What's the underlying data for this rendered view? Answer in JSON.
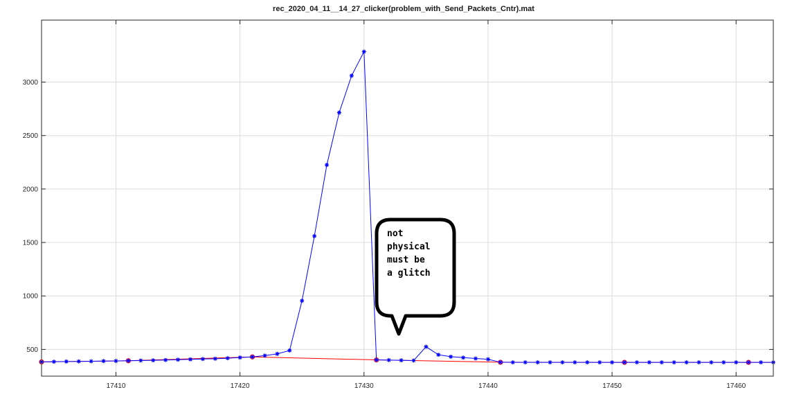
{
  "chart_data": {
    "type": "line",
    "title": "rec_2020_04_11__14_27_clicker(problem_with_Send_Packets_Cntr).mat",
    "xlabel": "",
    "ylabel": "",
    "xlim": [
      17404,
      17463
    ],
    "ylim": [
      250,
      3580
    ],
    "xticks": [
      17410,
      17420,
      17430,
      17440,
      17450,
      17460
    ],
    "yticks": [
      500,
      1000,
      1500,
      2000,
      2500,
      3000
    ],
    "grid": true,
    "series": [
      {
        "color": "#0000ff",
        "marker": "asterisk",
        "x": [
          17404,
          17405,
          17406,
          17407,
          17408,
          17409,
          17410,
          17411,
          17412,
          17413,
          17414,
          17415,
          17416,
          17417,
          17418,
          17419,
          17420,
          17421,
          17422,
          17423,
          17424,
          17425,
          17426,
          17427,
          17428,
          17429,
          17430,
          17431,
          17432,
          17433,
          17434,
          17435,
          17436,
          17437,
          17438,
          17439,
          17440,
          17441,
          17442,
          17443,
          17444,
          17445,
          17446,
          17447,
          17448,
          17449,
          17450,
          17451,
          17452,
          17453,
          17454,
          17455,
          17456,
          17457,
          17458,
          17459,
          17460,
          17461,
          17462,
          17463
        ],
        "y": [
          383,
          385,
          387,
          388,
          389,
          391,
          392,
          394,
          396,
          398,
          401,
          404,
          407,
          410,
          413,
          418,
          424,
          430,
          442,
          458,
          490,
          955,
          1560,
          2225,
          2715,
          3060,
          3285,
          402,
          400,
          398,
          396,
          525,
          450,
          432,
          423,
          415,
          408,
          380,
          379,
          379,
          379,
          379,
          379,
          379,
          379,
          379,
          379,
          379,
          379,
          379,
          379,
          379,
          379,
          379,
          379,
          379,
          379,
          379,
          379,
          379
        ]
      },
      {
        "color": "#ff0000",
        "marker": "circle",
        "x": [
          17404,
          17411,
          17421,
          17431,
          17441,
          17451,
          17461,
          17463
        ],
        "y": [
          383,
          394,
          430,
          402,
          380,
          379,
          379,
          379
        ]
      }
    ],
    "annotations": [
      {
        "lines": [
          "not",
          "physical",
          "must be",
          "a glitch"
        ],
        "x": 17433,
        "y": 470
      }
    ]
  }
}
